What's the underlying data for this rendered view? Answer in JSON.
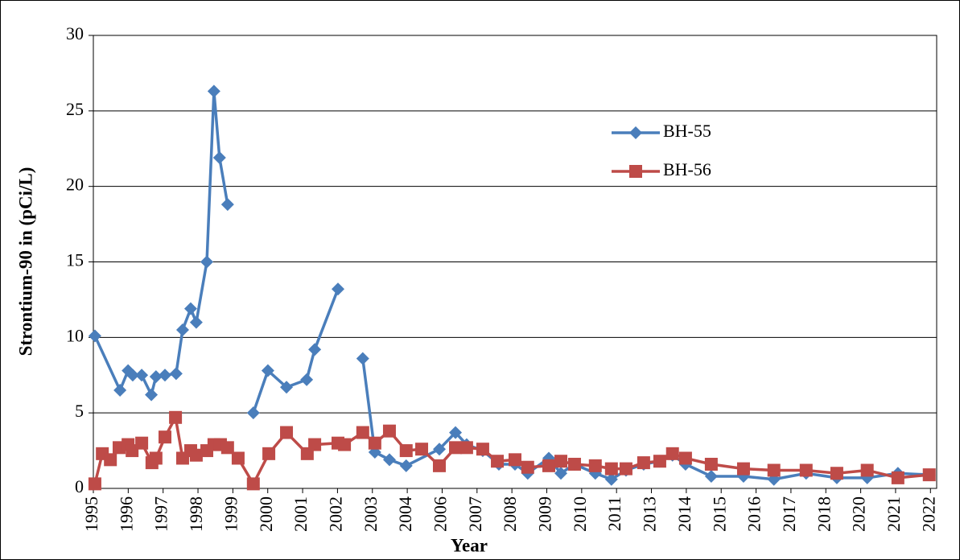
{
  "chart_data": {
    "type": "line",
    "x_label": "Year",
    "y_label": "Strontium-90 in (pCi/L)",
    "xlim": [
      1995,
      2022.2
    ],
    "ylim": [
      0,
      30
    ],
    "yticks": [
      0,
      5,
      10,
      15,
      20,
      25,
      30
    ],
    "xticks": [
      {
        "value": 1995,
        "label": "1995"
      },
      {
        "value": 1996.125,
        "label": "1996"
      },
      {
        "value": 1997.25,
        "label": "1997"
      },
      {
        "value": 1998.375,
        "label": "1998"
      },
      {
        "value": 1999.5,
        "label": "1999"
      },
      {
        "value": 2000.625,
        "label": "2000"
      },
      {
        "value": 2001.75,
        "label": "2001"
      },
      {
        "value": 2002.875,
        "label": "2002"
      },
      {
        "value": 2004,
        "label": "2003"
      },
      {
        "value": 2005.125,
        "label": "2004"
      },
      {
        "value": 2006.25,
        "label": "2006"
      },
      {
        "value": 2007.375,
        "label": "2007"
      },
      {
        "value": 2008.5,
        "label": "2008"
      },
      {
        "value": 2009.625,
        "label": "2009"
      },
      {
        "value": 2010.75,
        "label": "2010"
      },
      {
        "value": 2011.875,
        "label": "2011"
      },
      {
        "value": 2013,
        "label": "2013"
      },
      {
        "value": 2014.125,
        "label": "2014"
      },
      {
        "value": 2015.25,
        "label": "2015"
      },
      {
        "value": 2016.375,
        "label": "2016"
      },
      {
        "value": 2017.5,
        "label": "2017"
      },
      {
        "value": 2018.625,
        "label": "2018"
      },
      {
        "value": 2019.75,
        "label": "2020"
      },
      {
        "value": 2020.875,
        "label": "2021"
      },
      {
        "value": 2022,
        "label": "2022"
      }
    ],
    "grid": true,
    "legend": "right",
    "series": [
      {
        "name": "BH-55",
        "color": "#4a7ebb",
        "marker": "diamond",
        "x": [
          1995.05,
          1995.86,
          1996.12,
          1996.27,
          1996.56,
          1996.87,
          1997.02,
          1997.31,
          1997.67,
          1997.88,
          1998.14,
          1998.32,
          1998.66,
          1998.89,
          1999.07,
          1999.33,
          null,
          2000.16,
          2000.63,
          2001.23,
          2001.88,
          2002.14,
          2002.89,
          null,
          2003.69,
          2004.08,
          2004.55,
          2005.09,
          2006.16,
          2006.68,
          2007.04,
          2007.56,
          2008.08,
          2008.6,
          2009.01,
          2009.69,
          2010.08,
          2010.52,
          2011.19,
          2011.71,
          2012.18,
          2012.75,
          2013.27,
          2013.68,
          2014.1,
          2014.93,
          2015.97,
          2016.95,
          2017.99,
          2018.98,
          2019.96,
          2020.95,
          2021.96
        ],
        "values": [
          10.1,
          6.5,
          7.8,
          7.5,
          7.5,
          6.2,
          7.4,
          7.5,
          7.6,
          10.5,
          11.9,
          11.0,
          15.0,
          26.3,
          21.9,
          18.8,
          null,
          5.0,
          7.8,
          6.7,
          7.2,
          9.2,
          13.2,
          null,
          8.6,
          2.4,
          1.9,
          1.5,
          2.6,
          3.7,
          2.9,
          2.5,
          1.6,
          1.6,
          1.0,
          2.0,
          1.0,
          1.6,
          1.0,
          0.6,
          1.2,
          1.6,
          1.8,
          2.2,
          1.6,
          0.8,
          0.8,
          0.6,
          1.0,
          0.7,
          0.7,
          1.0,
          0.9
        ]
      },
      {
        "name": "BH-56",
        "color": "#be4b48",
        "marker": "square",
        "x": [
          1995.05,
          1995.29,
          1995.55,
          1995.83,
          1996.12,
          1996.25,
          1996.56,
          1996.89,
          1997.02,
          1997.31,
          1997.65,
          1997.88,
          1998.14,
          1998.32,
          1998.66,
          1998.89,
          1999.1,
          1999.33,
          1999.67,
          2000.16,
          2000.66,
          2001.23,
          2001.9,
          2002.14,
          2002.89,
          2003.1,
          2003.69,
          2004.08,
          2004.55,
          2005.09,
          2005.59,
          2006.16,
          2006.68,
          2007.04,
          2007.56,
          2008.03,
          2008.6,
          2009.01,
          2009.69,
          2010.08,
          2010.52,
          2011.19,
          2011.71,
          2012.18,
          2012.75,
          2013.27,
          2013.68,
          2014.1,
          2014.93,
          2015.97,
          2016.95,
          2017.99,
          2018.98,
          2019.96,
          2020.95,
          2021.96
        ],
        "values": [
          0.3,
          2.3,
          1.9,
          2.7,
          2.9,
          2.5,
          3.0,
          1.7,
          2.0,
          3.4,
          4.7,
          2.0,
          2.5,
          2.2,
          2.5,
          2.9,
          2.9,
          2.7,
          2.0,
          0.3,
          2.3,
          3.7,
          2.3,
          2.9,
          3.0,
          2.9,
          3.7,
          3.0,
          3.8,
          2.5,
          2.6,
          1.5,
          2.7,
          2.7,
          2.6,
          1.8,
          1.9,
          1.4,
          1.5,
          1.8,
          1.6,
          1.5,
          1.3,
          1.3,
          1.7,
          1.8,
          2.3,
          2.0,
          1.6,
          1.3,
          1.2,
          1.2,
          1.0,
          1.2,
          0.7,
          0.9
        ]
      }
    ]
  }
}
